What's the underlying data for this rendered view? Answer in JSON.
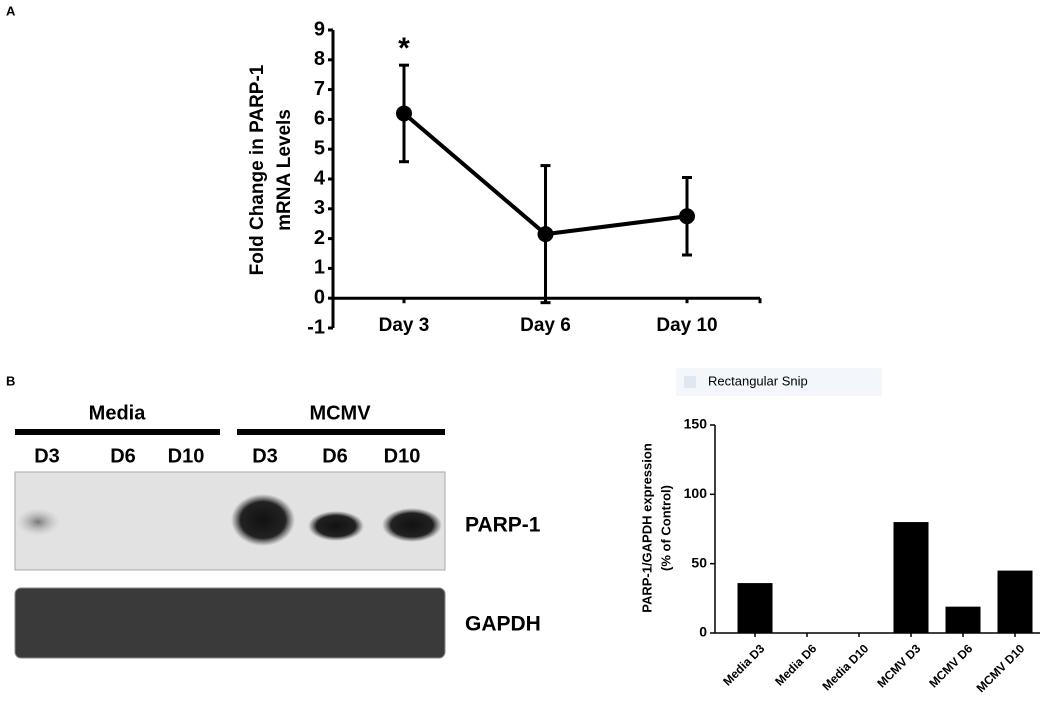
{
  "figure": {
    "panel_labels": [
      "A",
      "B"
    ],
    "overlay_text": "Rectangular Snip"
  },
  "chart_data": [
    {
      "type": "line",
      "ylabel": [
        "Fold Change in PARP-1",
        "mRNA Levels"
      ],
      "categories": [
        "Day 3",
        "Day 6",
        "Day 10"
      ],
      "series": [
        {
          "values": [
            6.2,
            2.15,
            2.75
          ],
          "errors": [
            1.62,
            2.3,
            1.3
          ],
          "color": "#000000"
        }
      ],
      "annotations": [
        "*"
      ],
      "ylim": [
        -1,
        9
      ],
      "yticks": [
        -1,
        0,
        1,
        2,
        3,
        4,
        5,
        6,
        7,
        8,
        9
      ]
    },
    {
      "type": "bar",
      "ylabel": [
        "PARP-1/GAPDH expression",
        "(% of Control)"
      ],
      "categories": [
        "Media D3",
        "Media D6",
        "Media D10",
        "MCMV D3",
        "MCMV D6",
        "MCMV D10"
      ],
      "values": [
        36,
        0,
        0,
        80,
        19,
        45
      ],
      "color": "#000000",
      "ylim": [
        0,
        150
      ],
      "yticks": [
        0,
        50,
        100,
        150
      ]
    }
  ],
  "blot": {
    "groups": [
      "Media",
      "MCMV"
    ],
    "lanes": [
      "D3",
      "D6",
      "D10",
      "D3",
      "D6",
      "D10"
    ],
    "rows": [
      "PARP-1",
      "GAPDH"
    ]
  }
}
